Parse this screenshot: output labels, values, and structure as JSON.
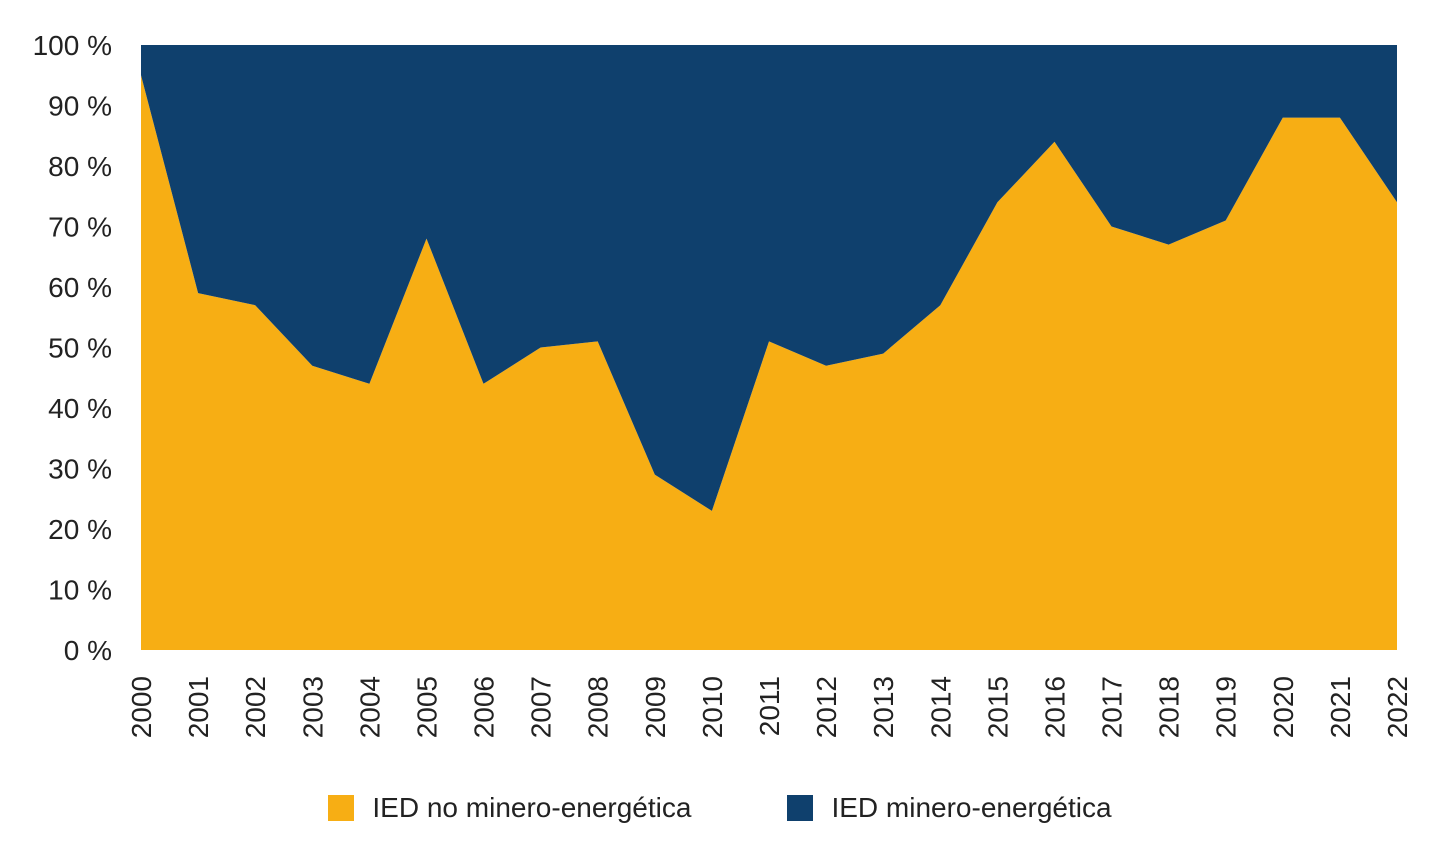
{
  "chart_data": {
    "type": "area",
    "stacked": true,
    "percent_stacked": true,
    "x": [
      "2000",
      "2001",
      "2002",
      "2003",
      "2004",
      "2005",
      "2006",
      "2007",
      "2008",
      "2009",
      "2010",
      "2011",
      "2012",
      "2013",
      "2014",
      "2015",
      "2016",
      "2017",
      "2018",
      "2019",
      "2020",
      "2021",
      "2022"
    ],
    "series": [
      {
        "name": "IED no minero-energética",
        "color": "#F7AE14",
        "values": [
          95,
          59,
          57,
          47,
          44,
          68,
          44,
          50,
          51,
          29,
          23,
          51,
          47,
          49,
          57,
          74,
          84,
          70,
          67,
          71,
          88,
          88,
          74
        ]
      },
      {
        "name": "IED minero-energética",
        "color": "#0F406D",
        "values": [
          5,
          41,
          43,
          53,
          56,
          32,
          56,
          50,
          49,
          71,
          77,
          49,
          53,
          51,
          43,
          26,
          16,
          30,
          33,
          29,
          12,
          12,
          26
        ]
      }
    ],
    "y_ticks": [
      "0 %",
      "10 %",
      "20 %",
      "30 %",
      "40 %",
      "50 %",
      "60 %",
      "70 %",
      "80 %",
      "90 %",
      "100 %"
    ],
    "ylim": [
      0,
      100
    ],
    "title": "",
    "xlabel": "",
    "ylabel": "",
    "grid": false,
    "legend_position": "bottom"
  }
}
